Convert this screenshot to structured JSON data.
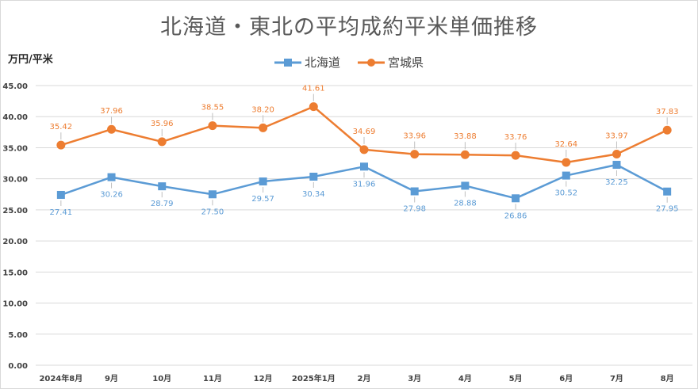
{
  "chart_data": {
    "type": "line",
    "title": "北海道・東北の平均成約平米単価推移",
    "ylabel": "万円/平米",
    "ylim": [
      0,
      45
    ],
    "yticks": [
      "0.00",
      "5.00",
      "10.00",
      "15.00",
      "20.00",
      "25.00",
      "30.00",
      "35.00",
      "40.00",
      "45.00"
    ],
    "categories": [
      "2024年8月",
      "9月",
      "10月",
      "11月",
      "12月",
      "2025年1月",
      "2月",
      "3月",
      "4月",
      "5月",
      "6月",
      "7月",
      "8月"
    ],
    "legend_position": "top",
    "grid": true,
    "series": [
      {
        "name": "北海道",
        "color": "#5b9bd5",
        "marker": "square",
        "label_position": "below",
        "values": [
          27.41,
          30.26,
          28.79,
          27.5,
          29.57,
          30.34,
          31.96,
          27.98,
          28.88,
          26.86,
          30.52,
          32.25,
          27.95
        ],
        "labels": [
          "27.41",
          "30.26",
          "28.79",
          "27.50",
          "29.57",
          "30.34",
          "31.96",
          "27.98",
          "28.88",
          "26.86",
          "30.52",
          "32.25",
          "27.95"
        ]
      },
      {
        "name": "宮城県",
        "color": "#ed7d31",
        "marker": "circle",
        "label_position": "above",
        "values": [
          35.42,
          37.96,
          35.96,
          38.55,
          38.2,
          41.61,
          34.69,
          33.96,
          33.88,
          33.76,
          32.64,
          33.97,
          37.83
        ],
        "labels": [
          "35.42",
          "37.96",
          "35.96",
          "38.55",
          "38.20",
          "41.61",
          "34.69",
          "33.96",
          "33.88",
          "33.76",
          "32.64",
          "33.97",
          "37.83"
        ]
      }
    ]
  }
}
